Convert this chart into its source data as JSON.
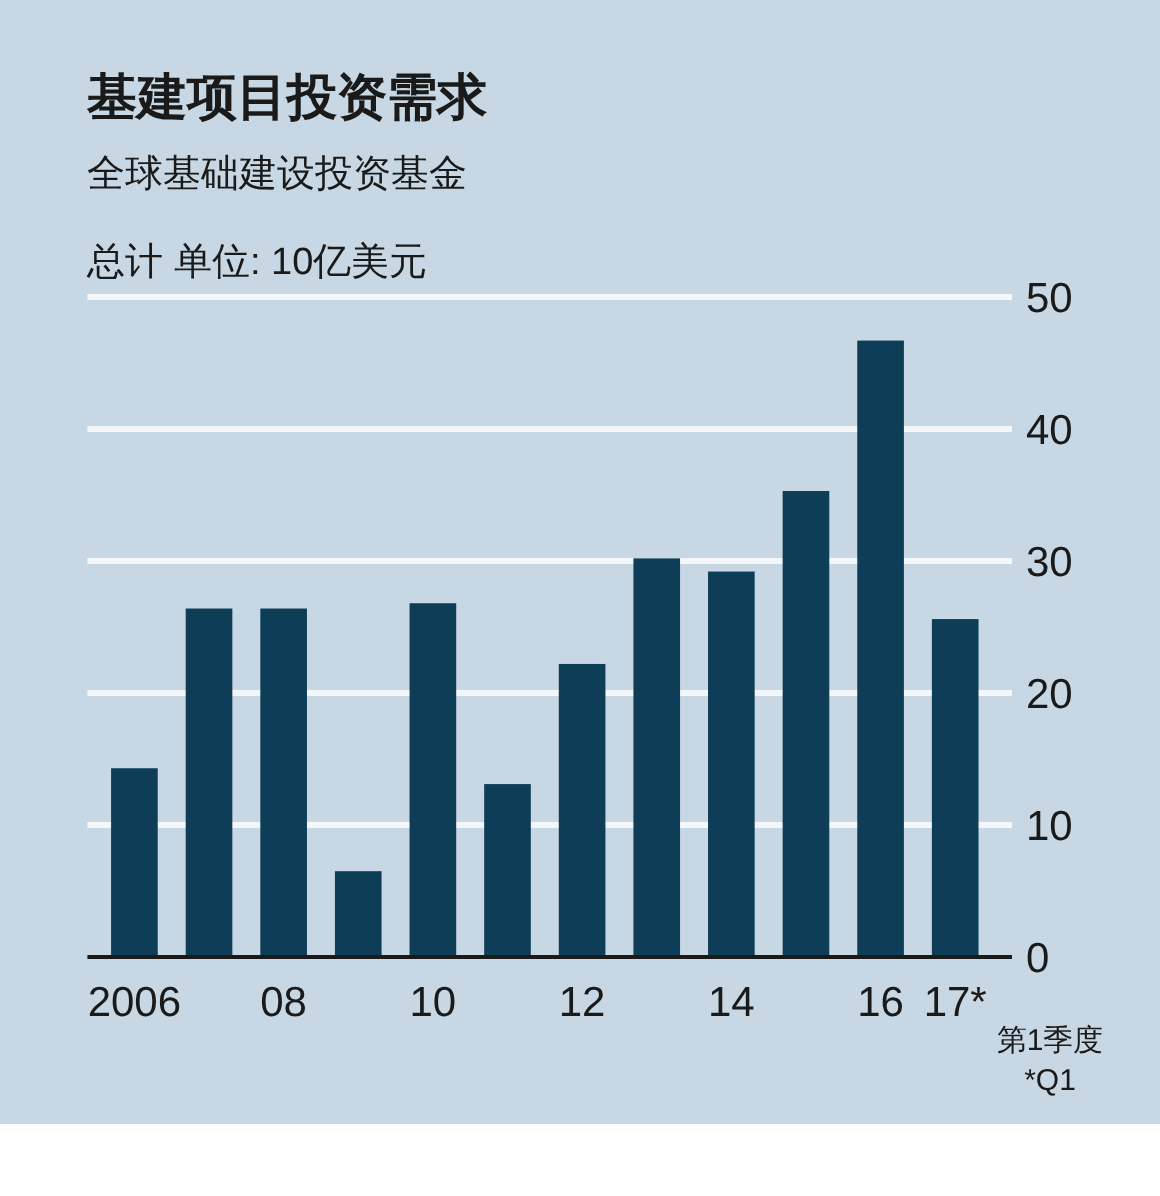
{
  "chart_data": {
    "type": "bar",
    "title": "基建项目投资需求",
    "subtitle": "全球基础建设投资基金",
    "ylabel": "总计 单位: 10亿美元",
    "categories": [
      "2006",
      null,
      "08",
      null,
      "10",
      null,
      "12",
      null,
      "14",
      null,
      "16",
      "17*"
    ],
    "values": [
      14.3,
      26.4,
      26.4,
      6.5,
      26.8,
      13.1,
      22.2,
      30.2,
      29.2,
      35.3,
      46.7,
      25.6
    ],
    "color": "#0e3d58",
    "ylim": [
      0,
      50
    ],
    "yticks": [
      0,
      10,
      20,
      30,
      40,
      50
    ],
    "grid": "y",
    "annotations": [
      "第1季度",
      "*Q1"
    ]
  }
}
